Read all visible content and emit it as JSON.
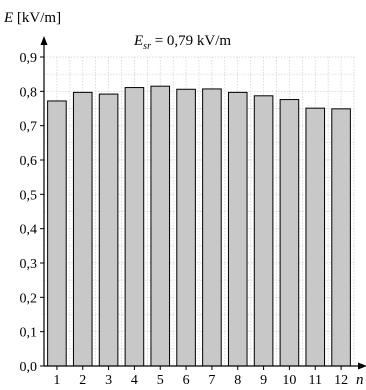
{
  "chart_data": {
    "type": "bar",
    "categories": [
      "1",
      "2",
      "3",
      "4",
      "5",
      "6",
      "7",
      "8",
      "9",
      "10",
      "11",
      "12"
    ],
    "values": [
      0.772,
      0.797,
      0.792,
      0.811,
      0.815,
      0.806,
      0.807,
      0.797,
      0.787,
      0.776,
      0.751,
      0.749
    ],
    "ylabel_var": "E",
    "ylabel_unit": " [kV/m]",
    "xlabel": "n",
    "ylim": [
      0,
      0.9
    ],
    "yticks": [
      "0,0",
      "0,1",
      "0,2",
      "0,3",
      "0,4",
      "0,5",
      "0,6",
      "0,7",
      "0,8",
      "0,9"
    ],
    "grid": true,
    "bar_color": "#c8c8c8",
    "annotation": {
      "var": "E",
      "sub": "sr",
      "text": " = 0,79 kV/m"
    }
  }
}
